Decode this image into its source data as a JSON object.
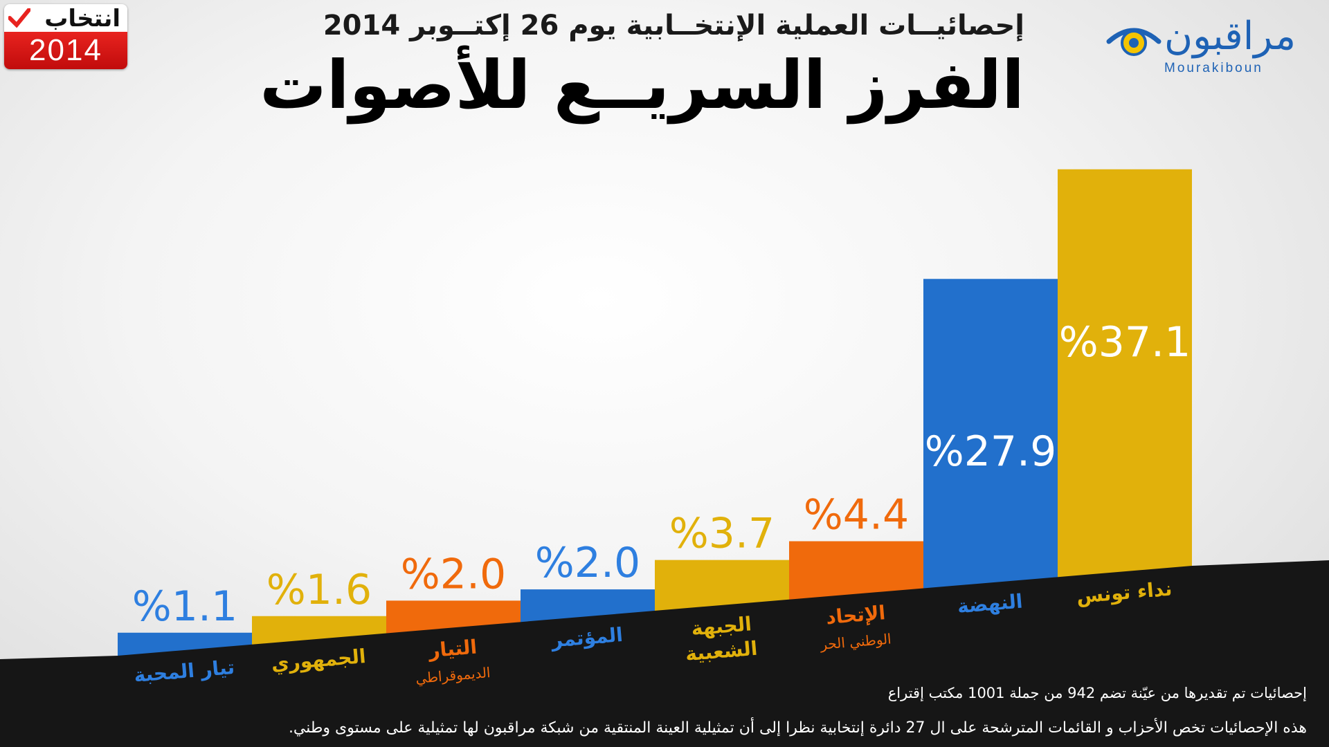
{
  "header": {
    "subtitle": "إحصائيــات العملية الإنتخــابية يوم 26 إكتــوبر 2014",
    "title": "الفرز السريــع للأصوات"
  },
  "badge": {
    "word": "انتخاب",
    "year": "2014"
  },
  "logo": {
    "arabic": "مراقبون",
    "latin": "Mourakiboun"
  },
  "colors": {
    "blue": "#2270cc",
    "orange": "#f06a0c",
    "gold": "#e1b10b",
    "band": "#161616"
  },
  "chart_data": {
    "type": "bar",
    "categories": [
      {
        "name": "تيار المحبة",
        "sub": "",
        "color": "#2270cc",
        "label_color": "#2e7fe0"
      },
      {
        "name": "الجمهوري",
        "sub": "",
        "color": "#e1b10b",
        "label_color": "#e1b10b"
      },
      {
        "name": "التيار",
        "sub": "الديموقراطي",
        "color": "#f06a0c",
        "label_color": "#f06a0c"
      },
      {
        "name": "المؤتمر",
        "sub": "",
        "color": "#2270cc",
        "label_color": "#2e7fe0"
      },
      {
        "name": "الجبهة",
        "sub": "الشعبية",
        "color": "#e1b10b",
        "label_color": "#e1b10b"
      },
      {
        "name": "الإتحاد",
        "sub": "الوطني الحر",
        "color": "#f06a0c",
        "label_color": "#f06a0c"
      },
      {
        "name": "النهضة",
        "sub": "",
        "color": "#2270cc",
        "label_color": "#2e7fe0"
      },
      {
        "name": "نداء تونس",
        "sub": "",
        "color": "#e1b10b",
        "label_color": "#e1b10b"
      }
    ],
    "values": [
      1.1,
      1.6,
      2.0,
      2.0,
      3.7,
      4.4,
      27.9,
      37.1
    ],
    "value_labels": [
      "%1.1",
      "%1.6",
      "%2.0",
      "%2.0",
      "%3.7",
      "%4.4",
      "%27.9",
      "%37.1"
    ],
    "title": "الفرز السريــع للأصوات",
    "xlabel": "",
    "ylabel": "",
    "ylim": [
      0,
      40
    ],
    "grid": false,
    "legend": "none"
  },
  "footer": {
    "line1": "إحصائيات تم تقديرها من عيّنة تضم 942 من جملة 1001 مكتب إقتراع",
    "line2": "هذه الإحصائيات تخص الأحزاب و القائمات المترشحة على ال 27 دائرة إنتخابية نظرا إلى أن تمثيلية العينة المنتقية من شبكة مراقبون لها تمثيلية على مستوى وطني."
  }
}
